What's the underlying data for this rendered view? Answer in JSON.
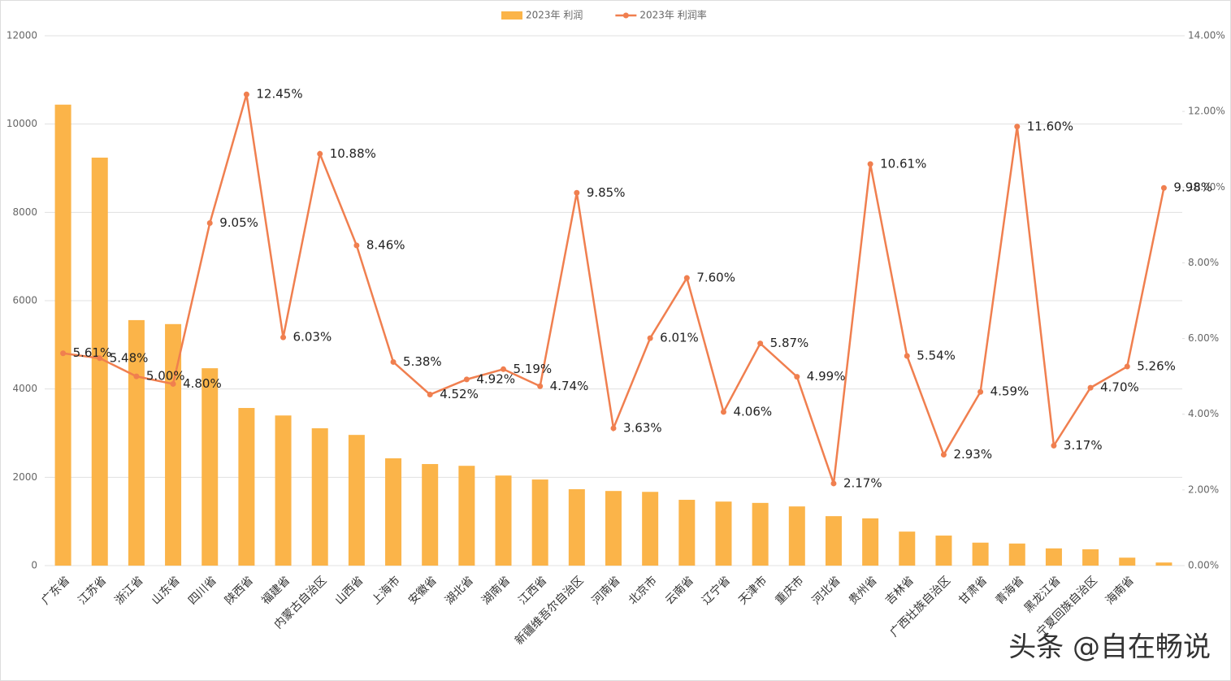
{
  "chart_data": {
    "type": "bar_line",
    "categories": [
      "广东省",
      "江苏省",
      "浙江省",
      "山东省",
      "四川省",
      "陕西省",
      "福建省",
      "内蒙古自治区",
      "山西省",
      "上海市",
      "安徽省",
      "湖北省",
      "湖南省",
      "江西省",
      "新疆维吾尔自治区",
      "河南省",
      "北京市",
      "云南省",
      "辽宁省",
      "天津市",
      "重庆市",
      "河北省",
      "贵州省",
      "吉林省",
      "广西壮族自治区",
      "甘肃省",
      "青海省",
      "黑龙江省",
      "宁夏回族自治区",
      "海南省",
      null
    ],
    "series": [
      {
        "name": "2023年 利润",
        "type": "bar",
        "color": "#fbb449",
        "values": [
          10440,
          9240,
          5560,
          5470,
          4470,
          3570,
          3400,
          3110,
          2960,
          2430,
          2300,
          2260,
          2040,
          1950,
          1730,
          1690,
          1670,
          1490,
          1450,
          1420,
          1340,
          1120,
          1070,
          770,
          680,
          520,
          500,
          390,
          370,
          180,
          70
        ]
      },
      {
        "name": "2023年 利润率",
        "type": "line",
        "axis": "y2",
        "color": "#f07f4f",
        "values": [
          5.61,
          5.48,
          5.0,
          4.8,
          9.05,
          12.45,
          6.03,
          10.88,
          8.46,
          5.38,
          4.52,
          4.92,
          5.19,
          4.74,
          9.85,
          3.63,
          6.01,
          7.6,
          4.06,
          5.87,
          4.99,
          2.17,
          10.61,
          5.54,
          2.93,
          4.59,
          11.6,
          3.17,
          4.7,
          5.26,
          9.98
        ],
        "value_labels": [
          "5.61%",
          "5.48%",
          "5.00%",
          "4.80%",
          "9.05%",
          "12.45%",
          "6.03%",
          "10.88%",
          "8.46%",
          "5.38%",
          "4.52%",
          "4.92%",
          "5.19%",
          "4.74%",
          "9.85%",
          "3.63%",
          "6.01%",
          "7.60%",
          "4.06%",
          "5.87%",
          "4.99%",
          "2.17%",
          "10.61%",
          "5.54%",
          "2.93%",
          "4.59%",
          "11.60%",
          "3.17%",
          "4.70%",
          "5.26%",
          "9.98%"
        ]
      }
    ],
    "ylim": [
      0,
      12000
    ],
    "yticks": [
      0,
      2000,
      4000,
      6000,
      8000,
      10000,
      12000
    ],
    "y2lim": [
      0,
      14
    ],
    "y2ticks": [
      {
        "value": 0,
        "label": "0.00%"
      },
      {
        "value": 2,
        "label": "2.00%"
      },
      {
        "value": 4,
        "label": "4.00%"
      },
      {
        "value": 6,
        "label": "6.00%"
      },
      {
        "value": 8,
        "label": "8.00%"
      },
      {
        "value": 10,
        "label": "10.00%"
      },
      {
        "value": 12,
        "label": "12.00%"
      },
      {
        "value": 14,
        "label": "14.00%"
      }
    ],
    "grid": true,
    "legend": "top",
    "watermark": "头条 @自在畅说"
  }
}
